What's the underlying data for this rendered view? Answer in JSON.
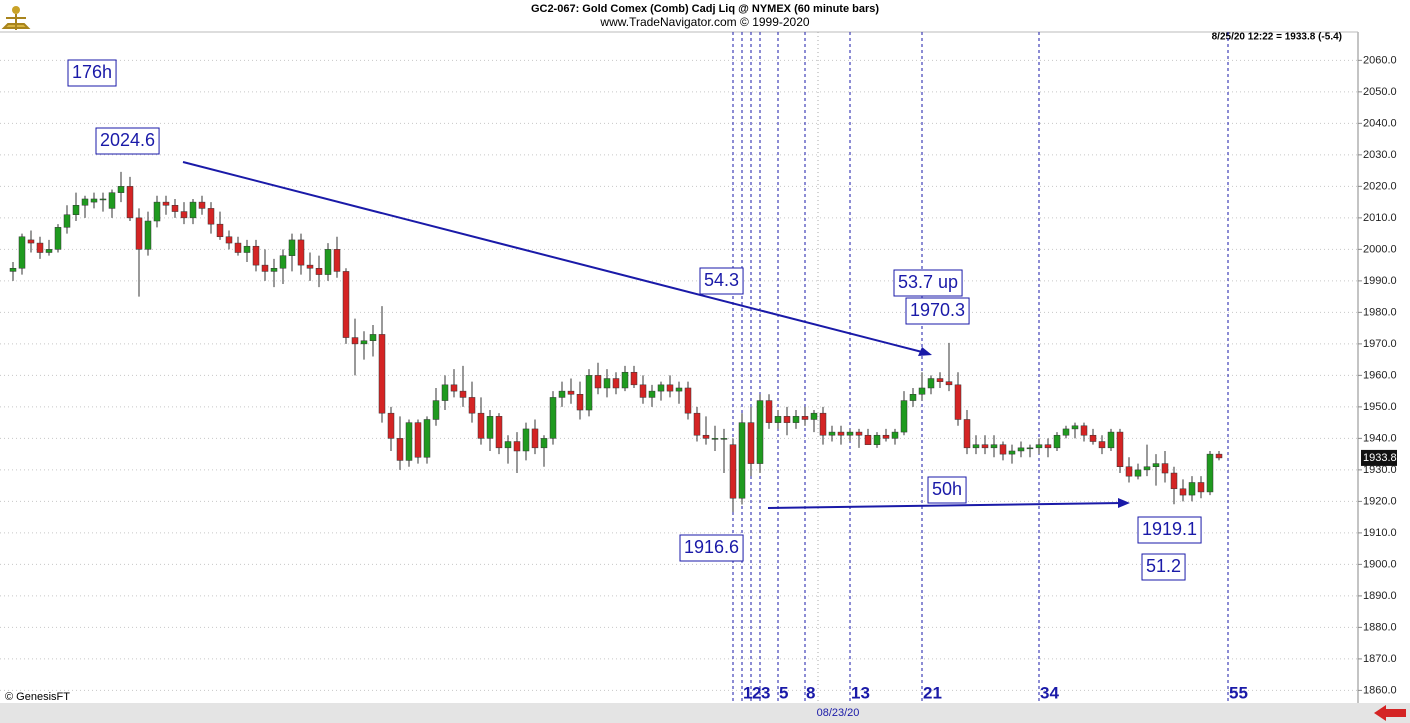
{
  "chart_data": {
    "type": "candlestick",
    "title": "GC2-067:  Gold Comex (Comb) Cadj Liq @ NYMEX  (60 minute bars)",
    "subtitle": "www.TradeNavigator.com © 1999-2020",
    "quote": "8/25/20 12:22 = 1933.8 (-5.4)",
    "last_price_label": "1933.8",
    "copyright": "© GenesisFT",
    "date_label": "08/23/20",
    "up_color": "#1f9a1f",
    "down_color": "#d42424",
    "ylim": [
      1856,
      2069
    ],
    "yticks": [
      {
        "value": 1860,
        "label": "1860.0"
      },
      {
        "value": 1870,
        "label": "1870.0"
      },
      {
        "value": 1880,
        "label": "1880.0"
      },
      {
        "value": 1890,
        "label": "1890.0"
      },
      {
        "value": 1900,
        "label": "1900.0"
      },
      {
        "value": 1910,
        "label": "1910.0"
      },
      {
        "value": 1920,
        "label": "1920.0"
      },
      {
        "value": 1930,
        "label": "1930.0"
      },
      {
        "value": 1940,
        "label": "1940.0"
      },
      {
        "value": 1950,
        "label": "1950.0"
      },
      {
        "value": 1960,
        "label": "1960.0"
      },
      {
        "value": 1970,
        "label": "1970.0"
      },
      {
        "value": 1980,
        "label": "1980.0"
      },
      {
        "value": 1990,
        "label": "1990.0"
      },
      {
        "value": 2000,
        "label": "2000.0"
      },
      {
        "value": 2010,
        "label": "2010.0"
      },
      {
        "value": 2020,
        "label": "2020.0"
      },
      {
        "value": 2030,
        "label": "2030.0"
      },
      {
        "value": 2040,
        "label": "2040.0"
      },
      {
        "value": 2050,
        "label": "2050.0"
      },
      {
        "value": 2060,
        "label": "2060.0"
      }
    ],
    "grid": true,
    "bar_counts": [
      1,
      2,
      3,
      5,
      8,
      13,
      21,
      34,
      55
    ],
    "annotations": [
      "176h",
      "2024.6",
      "54.3",
      "53.7 up",
      "1970.3",
      "50h",
      "1916.6",
      "1919.1",
      "51.2"
    ],
    "ohlc": [
      [
        1993,
        1996,
        1990,
        1994
      ],
      [
        1994,
        2005,
        1992,
        2004
      ],
      [
        2003,
        2006,
        1999,
        2002
      ],
      [
        2002,
        2004,
        1997,
        1999
      ],
      [
        1999,
        2003,
        1998,
        2000
      ],
      [
        2000,
        2008,
        1999,
        2007
      ],
      [
        2007,
        2014,
        2005,
        2011
      ],
      [
        2011,
        2018,
        2009,
        2014
      ],
      [
        2014,
        2017,
        2010,
        2016
      ],
      [
        2015,
        2018,
        2013,
        2016
      ],
      [
        2016,
        2018,
        2012,
        2016
      ],
      [
        2013,
        2019,
        2010,
        2018
      ],
      [
        2018,
        2024.6,
        2015,
        2020
      ],
      [
        2020,
        2023,
        2009,
        2010
      ],
      [
        2010,
        2013,
        1985,
        2000
      ],
      [
        2000,
        2012,
        1998,
        2009
      ],
      [
        2009,
        2017,
        2007,
        2015
      ],
      [
        2015,
        2017,
        2011,
        2014
      ],
      [
        2014,
        2016,
        2010,
        2012
      ],
      [
        2012,
        2015,
        2008,
        2010
      ],
      [
        2010,
        2016,
        2008,
        2015
      ],
      [
        2015,
        2017,
        2011,
        2013
      ],
      [
        2013,
        2015,
        2005,
        2008
      ],
      [
        2008,
        2012,
        2003,
        2004
      ],
      [
        2004,
        2006,
        2000,
        2002
      ],
      [
        2002,
        2004,
        1998,
        1999
      ],
      [
        1999,
        2003,
        1996,
        2001
      ],
      [
        2001,
        2003,
        1993,
        1995
      ],
      [
        1995,
        2000,
        1990,
        1993
      ],
      [
        1993,
        1997,
        1988,
        1994
      ],
      [
        1994,
        2000,
        1989,
        1998
      ],
      [
        1998,
        2005,
        1993,
        2003
      ],
      [
        2003,
        2005,
        1992,
        1995
      ],
      [
        1995,
        1999,
        1990,
        1994
      ],
      [
        1994,
        1998,
        1988,
        1992
      ],
      [
        1992,
        2002,
        1990,
        2000
      ],
      [
        2000,
        2004,
        1991,
        1993
      ],
      [
        1993,
        1994,
        1970,
        1972
      ],
      [
        1972,
        1978,
        1960,
        1970
      ],
      [
        1970,
        1974,
        1965,
        1971
      ],
      [
        1971,
        1976,
        1966,
        1973
      ],
      [
        1973,
        1982,
        1945,
        1948
      ],
      [
        1948,
        1950,
        1936,
        1940
      ],
      [
        1940,
        1947,
        1930,
        1933
      ],
      [
        1933,
        1946,
        1931,
        1945
      ],
      [
        1945,
        1946,
        1932,
        1934
      ],
      [
        1934,
        1947,
        1932,
        1946
      ],
      [
        1946,
        1956,
        1944,
        1952
      ],
      [
        1952,
        1960,
        1949,
        1957
      ],
      [
        1957,
        1962,
        1953,
        1955
      ],
      [
        1955,
        1963,
        1950,
        1953
      ],
      [
        1953,
        1958,
        1945,
        1948
      ],
      [
        1948,
        1953,
        1938,
        1940
      ],
      [
        1940,
        1949,
        1936,
        1947
      ],
      [
        1947,
        1948,
        1935,
        1937
      ],
      [
        1937,
        1941,
        1932,
        1939
      ],
      [
        1939,
        1942,
        1929,
        1936
      ],
      [
        1936,
        1945,
        1933,
        1943
      ],
      [
        1943,
        1946,
        1935,
        1937
      ],
      [
        1937,
        1941,
        1931,
        1940
      ],
      [
        1940,
        1955,
        1938,
        1953
      ],
      [
        1953,
        1958,
        1950,
        1955
      ],
      [
        1955,
        1959,
        1951,
        1954
      ],
      [
        1954,
        1958,
        1946,
        1949
      ],
      [
        1949,
        1962,
        1947,
        1960
      ],
      [
        1960,
        1964,
        1954,
        1956
      ],
      [
        1956,
        1962,
        1953,
        1959
      ],
      [
        1959,
        1961,
        1954,
        1956
      ],
      [
        1956,
        1963,
        1955,
        1961
      ],
      [
        1961,
        1963,
        1956,
        1957
      ],
      [
        1957,
        1960,
        1951,
        1953
      ],
      [
        1953,
        1957,
        1950,
        1955
      ],
      [
        1955,
        1958,
        1952,
        1957
      ],
      [
        1957,
        1960,
        1953,
        1955
      ],
      [
        1955,
        1958,
        1951,
        1956
      ],
      [
        1956,
        1958,
        1946,
        1948
      ],
      [
        1948,
        1950,
        1939,
        1941
      ],
      [
        1941,
        1947,
        1938,
        1940
      ],
      [
        1940,
        1944,
        1936,
        1940
      ],
      [
        1940,
        1943,
        1929,
        1940
      ],
      [
        1938,
        1940,
        1916.6,
        1921
      ],
      [
        1921,
        1948,
        1919,
        1945
      ],
      [
        1945,
        1950,
        1928,
        1932
      ],
      [
        1932,
        1954,
        1929,
        1952
      ],
      [
        1952,
        1954,
        1943,
        1945
      ],
      [
        1945,
        1949,
        1943,
        1947
      ],
      [
        1947,
        1950,
        1941,
        1945
      ],
      [
        1945,
        1949,
        1943,
        1947
      ],
      [
        1947,
        1950,
        1944,
        1946
      ],
      [
        1946,
        1949,
        1942,
        1948
      ],
      [
        1948,
        1950,
        1938,
        1941
      ],
      [
        1941,
        1944,
        1939,
        1942
      ],
      [
        1942,
        1944,
        1938,
        1941
      ],
      [
        1941,
        1943,
        1939,
        1942
      ],
      [
        1942,
        1943,
        1937,
        1941
      ],
      [
        1941,
        1943,
        1938,
        1938
      ],
      [
        1938,
        1942,
        1937,
        1941
      ],
      [
        1941,
        1943,
        1939,
        1940
      ],
      [
        1940,
        1943,
        1938,
        1942
      ],
      [
        1942,
        1955,
        1941,
        1952
      ],
      [
        1952,
        1956,
        1950,
        1954
      ],
      [
        1954,
        1961,
        1952,
        1956
      ],
      [
        1956,
        1960,
        1954,
        1959
      ],
      [
        1959,
        1961,
        1956,
        1958
      ],
      [
        1958,
        1970.3,
        1955,
        1957
      ],
      [
        1957,
        1961,
        1944,
        1946
      ],
      [
        1946,
        1949,
        1935,
        1937
      ],
      [
        1937,
        1941,
        1935,
        1938
      ],
      [
        1938,
        1941,
        1935,
        1937
      ],
      [
        1937,
        1941,
        1934,
        1938
      ],
      [
        1938,
        1939,
        1933,
        1935
      ],
      [
        1935,
        1938,
        1932,
        1936
      ],
      [
        1936,
        1939,
        1934,
        1937
      ],
      [
        1937,
        1938,
        1934,
        1937
      ],
      [
        1937,
        1940,
        1935,
        1938
      ],
      [
        1938,
        1940,
        1934,
        1937
      ],
      [
        1937,
        1942,
        1936,
        1941
      ],
      [
        1941,
        1944,
        1940,
        1943
      ],
      [
        1943,
        1945,
        1940,
        1944
      ],
      [
        1944,
        1945,
        1939,
        1941
      ],
      [
        1941,
        1943,
        1938,
        1939
      ],
      [
        1939,
        1941,
        1935,
        1937
      ],
      [
        1937,
        1943,
        1936,
        1942
      ],
      [
        1942,
        1943,
        1929,
        1931
      ],
      [
        1931,
        1934,
        1926,
        1928
      ],
      [
        1928,
        1932,
        1927,
        1930
      ],
      [
        1930,
        1938,
        1928,
        1931
      ],
      [
        1931,
        1935,
        1925,
        1932
      ],
      [
        1932,
        1936,
        1926,
        1929
      ],
      [
        1929,
        1931,
        1919.1,
        1924
      ],
      [
        1924,
        1927,
        1920,
        1922
      ],
      [
        1922,
        1928,
        1920,
        1926
      ],
      [
        1926,
        1928,
        1921,
        1923
      ],
      [
        1923,
        1936,
        1922,
        1935
      ],
      [
        1935,
        1936,
        1933,
        1933.8
      ]
    ]
  }
}
